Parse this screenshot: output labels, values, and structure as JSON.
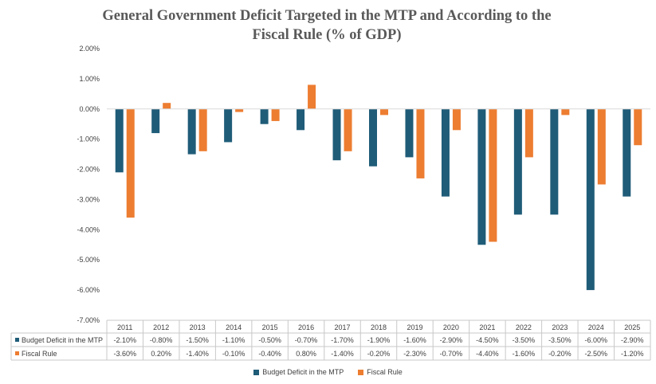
{
  "chart_data": {
    "type": "bar",
    "title": "General Government Deficit Targeted in the MTP and According to the Fiscal Rule (% of GDP)",
    "categories": [
      "2011",
      "2012",
      "2013",
      "2014",
      "2015",
      "2016",
      "2017",
      "2018",
      "2019",
      "2020",
      "2021",
      "2022",
      "2023",
      "2024",
      "2025"
    ],
    "series": [
      {
        "name": "Budget Deficit in the MTP",
        "color": "#1F5C78",
        "values": [
          -2.1,
          -0.8,
          -1.5,
          -1.1,
          -0.5,
          -0.7,
          -1.7,
          -1.9,
          -1.6,
          -2.9,
          -4.5,
          -3.5,
          -3.5,
          -6.0,
          -2.9
        ],
        "labels": [
          "-2.10%",
          "-0.80%",
          "-1.50%",
          "-1.10%",
          "-0.50%",
          "-0.70%",
          "-1.70%",
          "-1.90%",
          "-1.60%",
          "-2.90%",
          "-4.50%",
          "-3.50%",
          "-3.50%",
          "-6.00%",
          "-2.90%"
        ]
      },
      {
        "name": "Fiscal Rule",
        "color": "#ED7D31",
        "values": [
          -3.6,
          0.2,
          -1.4,
          -0.1,
          -0.4,
          0.8,
          -1.4,
          -0.2,
          -2.3,
          -0.7,
          -4.4,
          -1.6,
          -0.2,
          -2.5,
          -1.2
        ],
        "labels": [
          "-3.60%",
          "0.20%",
          "-1.40%",
          "-0.10%",
          "-0.40%",
          "0.80%",
          "-1.40%",
          "-0.20%",
          "-2.30%",
          "-0.70%",
          "-4.40%",
          "-1.60%",
          "-0.20%",
          "-2.50%",
          "-1.20%"
        ]
      }
    ],
    "ylim": [
      -7.0,
      2.0
    ],
    "yticks": [
      "2.00%",
      "1.00%",
      "0.00%",
      "-1.00%",
      "-2.00%",
      "-3.00%",
      "-4.00%",
      "-5.00%",
      "-6.00%",
      "-7.00%"
    ],
    "ytick_values": [
      2,
      1,
      0,
      -1,
      -2,
      -3,
      -4,
      -5,
      -6,
      -7
    ],
    "grid": false,
    "data_table": true,
    "legend_position": "bottom"
  }
}
